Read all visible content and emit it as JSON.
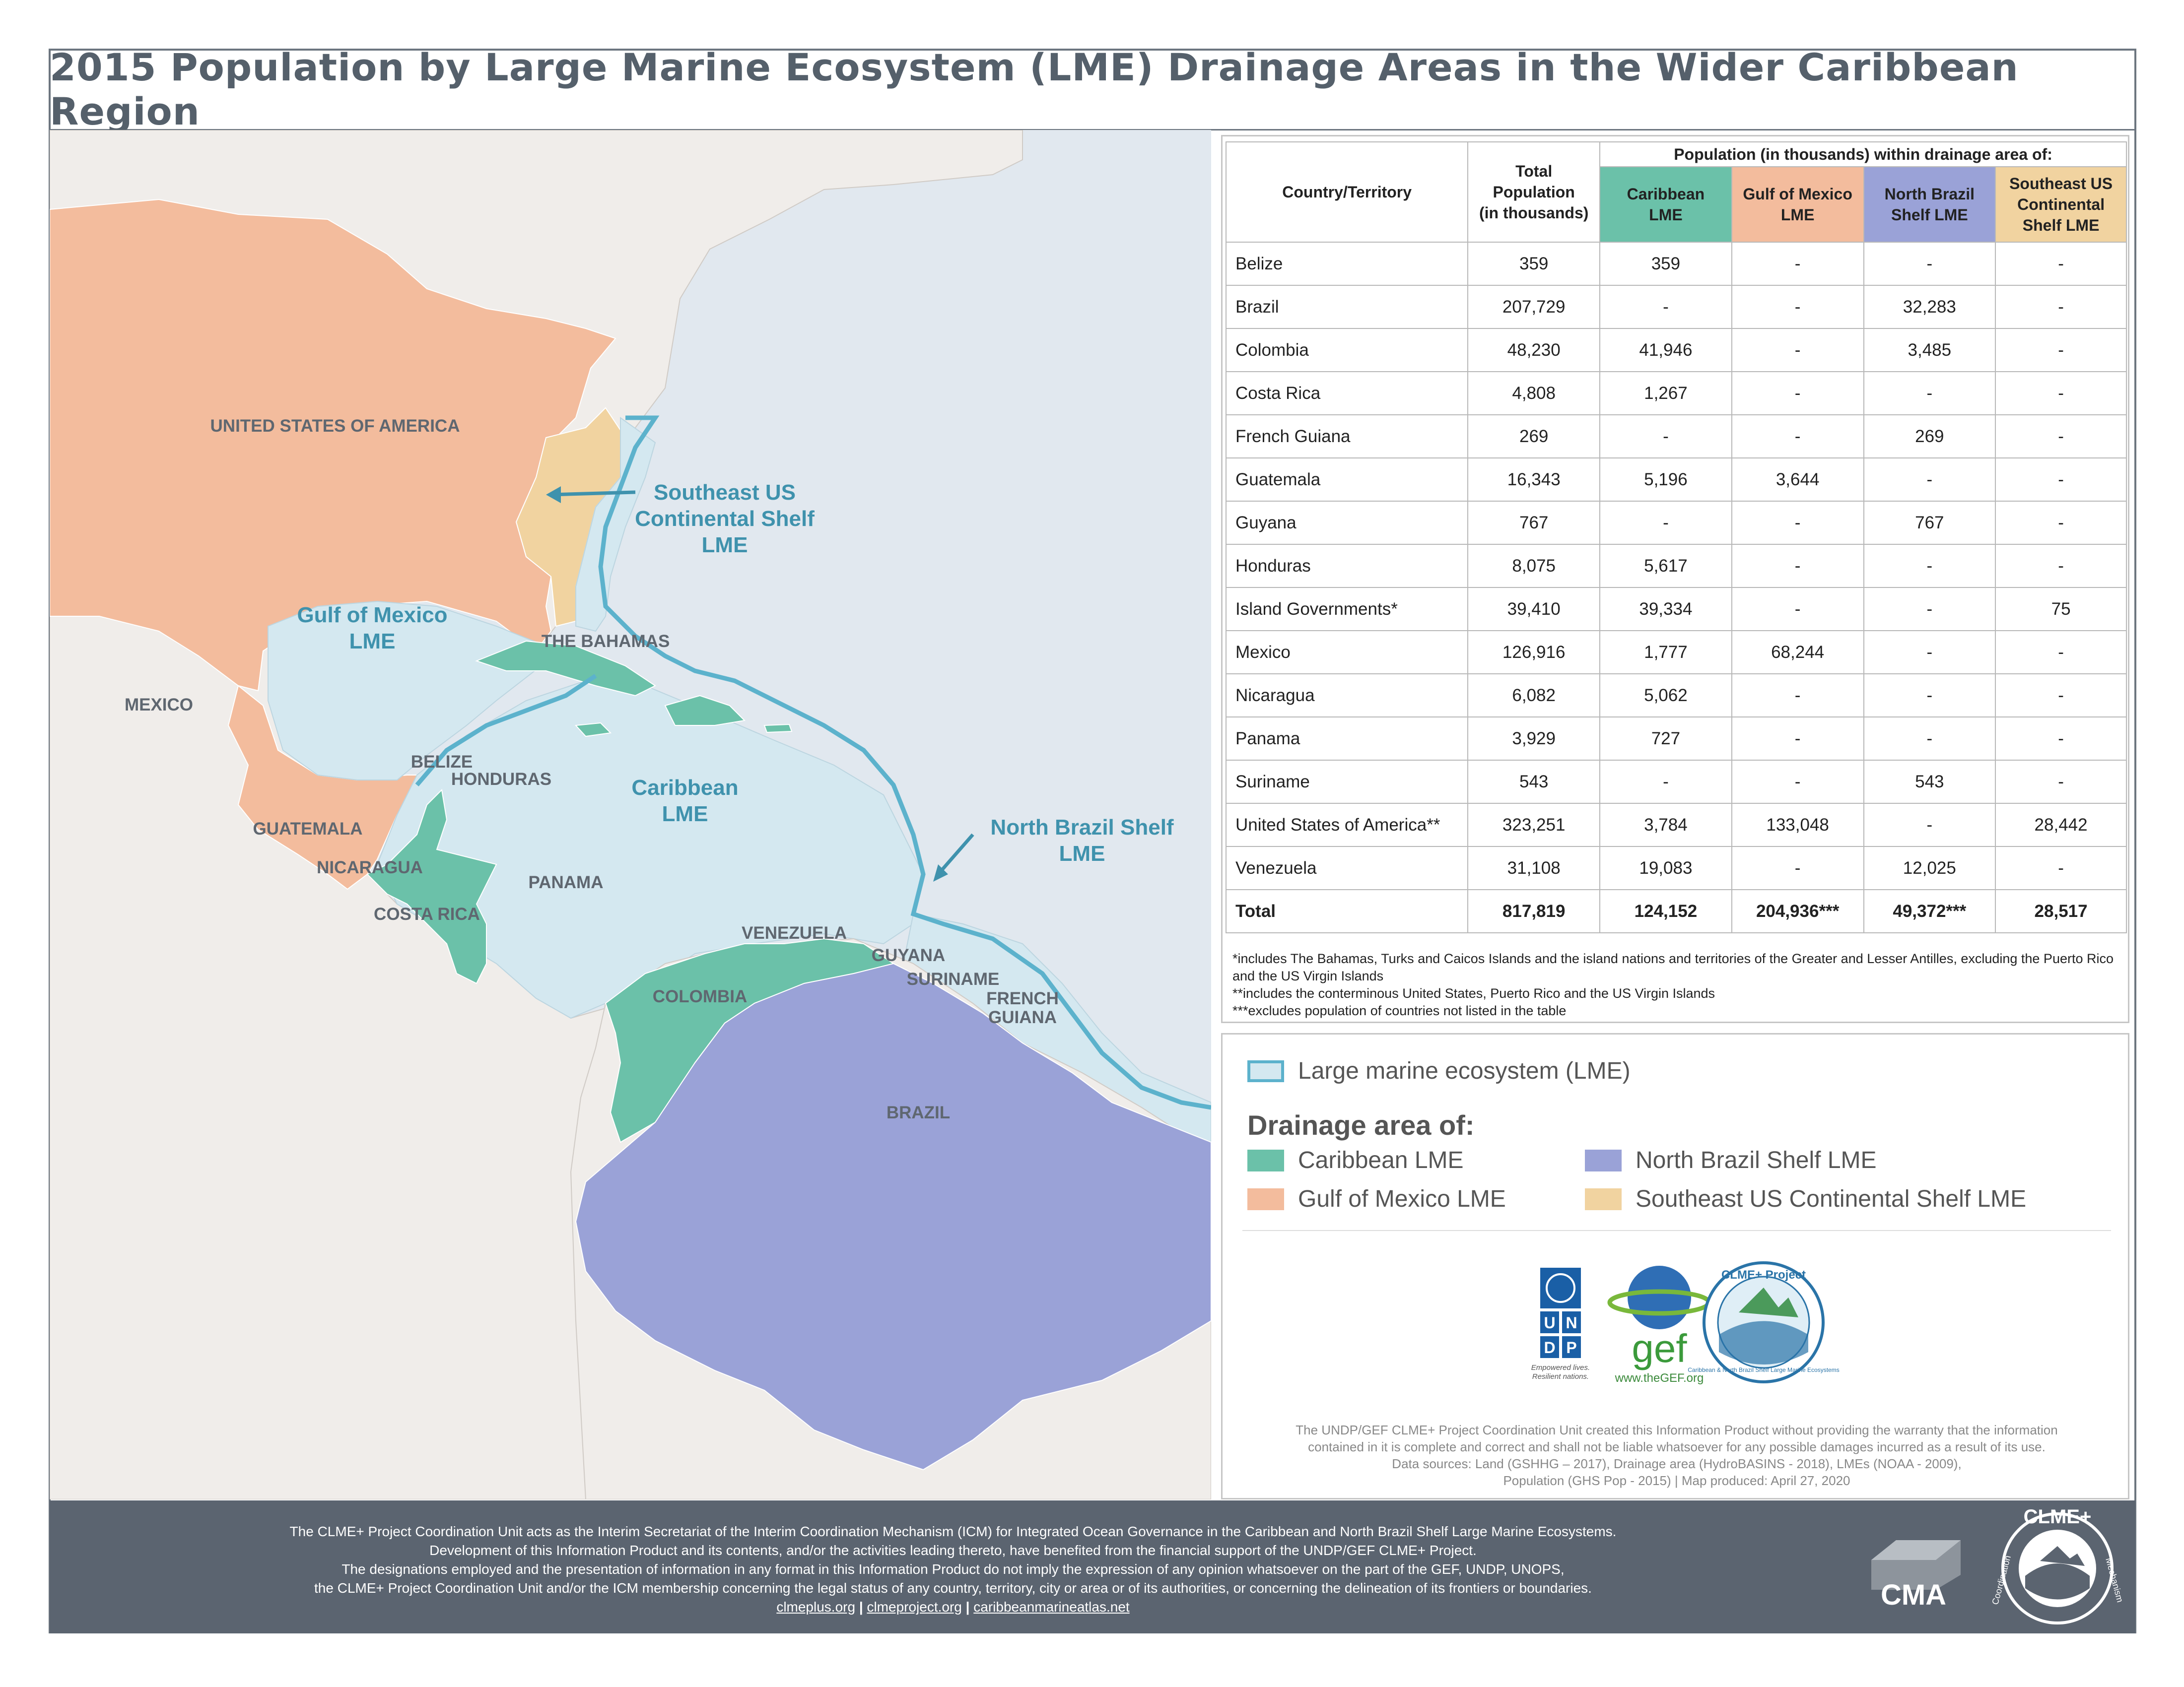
{
  "title": "2015 Population by Large Marine Ecosystem (LME) Drainage Areas in the Wider Caribbean Region",
  "colors": {
    "caribbean": "#6bc1a9",
    "gulf": "#f3bc9d",
    "north_brazil": "#9aa2d7",
    "southeast_us": "#f1d3a0",
    "lme": "#d4e8f0",
    "lme_border": "#5cb2cc",
    "ocean": "#e1e8ef",
    "land": "#f0edea",
    "footer": "#5b6470"
  },
  "map": {
    "countries": [
      "UNITED STATES OF AMERICA",
      "MEXICO",
      "THE BAHAMAS",
      "BELIZE",
      "HONDURAS",
      "GUATEMALA",
      "NICARAGUA",
      "COSTA RICA",
      "PANAMA",
      "VENEZUELA",
      "COLOMBIA",
      "GUYANA",
      "SURINAME",
      "FRENCH GUIANA",
      "BRAZIL"
    ],
    "lme_labels": {
      "southeast": [
        "Southeast US",
        "Continental Shelf",
        "LME"
      ],
      "gulf": [
        "Gulf of Mexico",
        "LME"
      ],
      "caribbean": [
        "Caribbean",
        "LME"
      ],
      "north_brazil": [
        "North Brazil Shelf",
        "LME"
      ]
    }
  },
  "table": {
    "col_country": "Country/Territory",
    "col_total": [
      "Total",
      "Population",
      "(in thousands)"
    ],
    "super_header": "Population (in thousands) within drainage area of:",
    "col_caribbean": [
      "Caribbean",
      "LME"
    ],
    "col_gulf": [
      "Gulf of Mexico",
      "LME"
    ],
    "col_nbs": [
      "North Brazil",
      "Shelf LME"
    ],
    "col_se": [
      "Southeast US",
      "Continental",
      "Shelf LME"
    ],
    "rows": [
      [
        "Belize",
        "359",
        "359",
        "-",
        "-",
        "-"
      ],
      [
        "Brazil",
        "207,729",
        "-",
        "-",
        "32,283",
        "-"
      ],
      [
        "Colombia",
        "48,230",
        "41,946",
        "-",
        "3,485",
        "-"
      ],
      [
        "Costa Rica",
        "4,808",
        "1,267",
        "-",
        "-",
        "-"
      ],
      [
        "French Guiana",
        "269",
        "-",
        "-",
        "269",
        "-"
      ],
      [
        "Guatemala",
        "16,343",
        "5,196",
        "3,644",
        "-",
        "-"
      ],
      [
        "Guyana",
        "767",
        "-",
        "-",
        "767",
        "-"
      ],
      [
        "Honduras",
        "8,075",
        "5,617",
        "-",
        "-",
        "-"
      ],
      [
        "Island Governments*",
        "39,410",
        "39,334",
        "-",
        "-",
        "75"
      ],
      [
        "Mexico",
        "126,916",
        "1,777",
        "68,244",
        "-",
        "-"
      ],
      [
        "Nicaragua",
        "6,082",
        "5,062",
        "-",
        "-",
        "-"
      ],
      [
        "Panama",
        "3,929",
        "727",
        "-",
        "-",
        "-"
      ],
      [
        "Suriname",
        "543",
        "-",
        "-",
        "543",
        "-"
      ],
      [
        "United States of America**",
        "323,251",
        "3,784",
        "133,048",
        "-",
        "28,442"
      ],
      [
        "Venezuela",
        "31,108",
        "19,083",
        "-",
        "12,025",
        "-"
      ]
    ],
    "total": [
      "Total",
      "817,819",
      "124,152",
      "204,936***",
      "49,372***",
      "28,517"
    ],
    "notes": [
      "*includes The Bahamas, Turks and Caicos Islands and the island nations and territories of the Greater and Lesser Antilles, excluding the Puerto Rico and the US Virgin Islands",
      "**includes the conterminous United States, Puerto Rico and the US Virgin Islands",
      "***excludes population of countries not listed in the table"
    ]
  },
  "legend": {
    "lme": "Large marine ecosystem (LME)",
    "drainage_heading": "Drainage area of:",
    "caribbean": "Caribbean LME",
    "gulf": "Gulf of Mexico LME",
    "north_brazil": "North Brazil Shelf LME",
    "southeast": "Southeast US Continental Shelf LME"
  },
  "logos": {
    "undp_letters": [
      "U",
      "N",
      "D",
      "P"
    ],
    "undp_tagline": [
      "Empowered lives.",
      "Resilient nations."
    ],
    "gef_text": "gef",
    "gef_url": "www.theGEF.org",
    "clme_top": "CLME+ Project",
    "clme_ring": "Caribbean & North Brazil Shelf Large Marine Ecosystems"
  },
  "disclaimer": [
    "The UNDP/GEF CLME+ Project Coordination Unit created this Information Product without providing the warranty that the information",
    "contained in it is complete and correct and shall not be liable whatsoever for any possible damages incurred as a result of its use.",
    "Data sources: Land (GSHHG – 2017), Drainage area (HydroBASINS - 2018),  LMEs (NOAA - 2009),",
    "Population (GHS Pop - 2015) | Map produced: April 27, 2020"
  ],
  "footer": {
    "lines": [
      "The CLME+ Project Coordination Unit acts as the Interim Secretariat of the Interim Coordination Mechanism (ICM) for Integrated Ocean Governance in the Caribbean and North Brazil Shelf Large Marine Ecosystems.",
      "Development of this Information Product and its contents, and/or the activities leading thereto, have benefited from the financial support of the UNDP/GEF CLME+ Project.",
      "The designations employed and the presentation of information in any format in this Information Product do not imply the expression of any opinion whatsoever on the part of the GEF, UNDP, UNOPS,",
      "the CLME+ Project Coordination Unit and/or the ICM membership concerning the legal status of any country, territory, city or area or of its authorities, or concerning the delineation of its frontiers or boundaries."
    ],
    "link1": "clmeplus.org",
    "link2": "clmeproject.org",
    "link3": "caribbeanmarineatlas.net",
    "sep": "|",
    "cma": "CMA",
    "icm_ring_top": "CLME+",
    "icm_ring_side": "Coordination",
    "icm_ring_right": "Mechanism"
  }
}
